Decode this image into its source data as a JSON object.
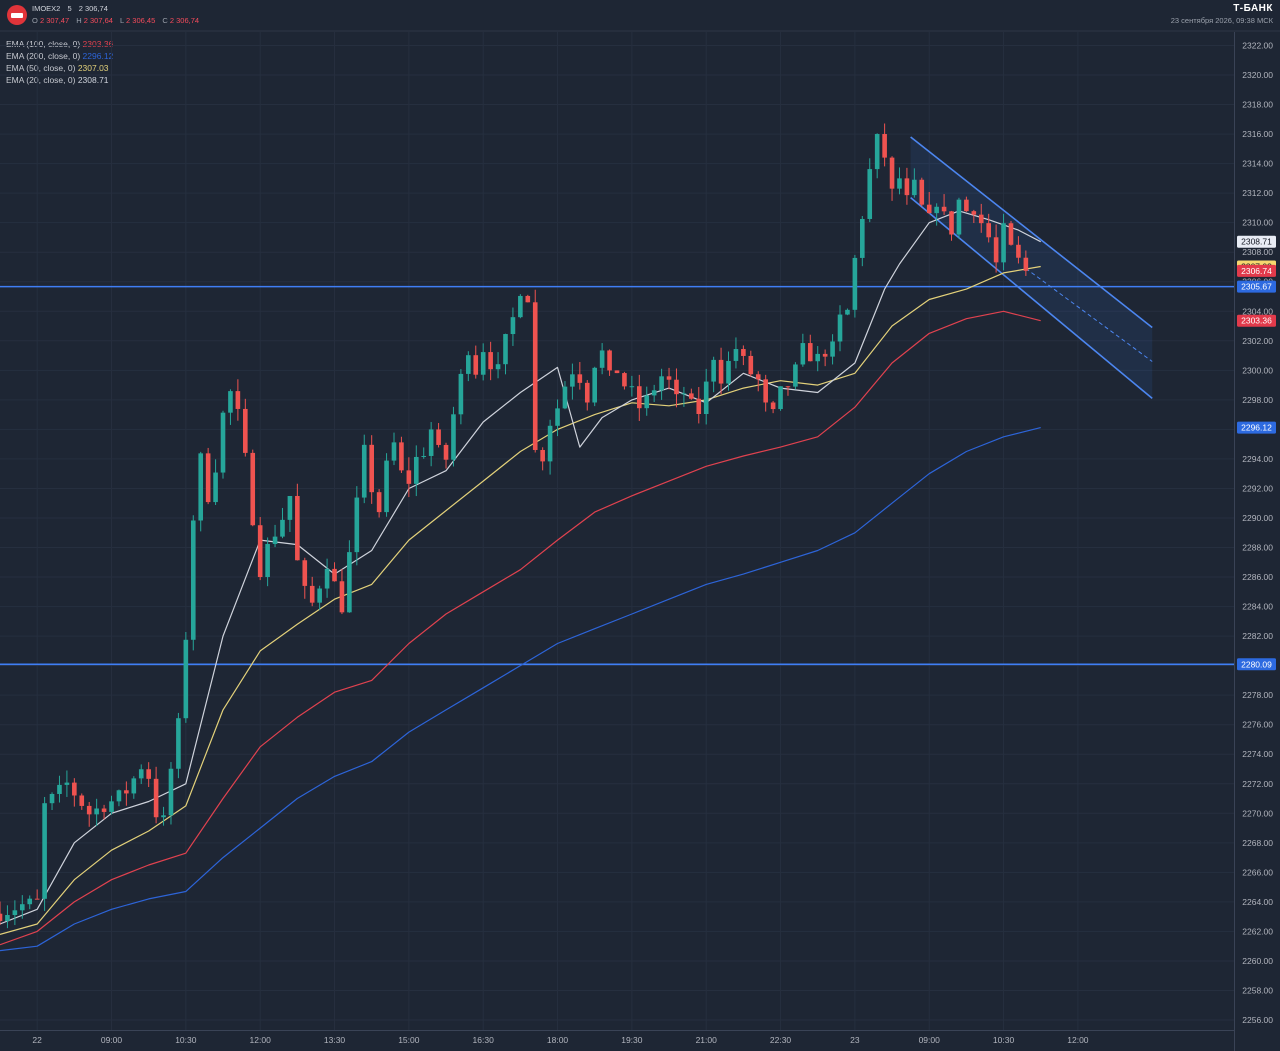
{
  "header": {
    "symbol": "IMOEX2",
    "timeframe": "5",
    "price": "2 306,74",
    "ohlc": [
      {
        "k": "O",
        "v": "2 307,47"
      },
      {
        "k": "H",
        "v": "2 307,64"
      },
      {
        "k": "L",
        "v": "2 306,45"
      },
      {
        "k": "C",
        "v": "2 306,74"
      }
    ],
    "brand": "Т-БАНК",
    "datetime": "23 сентября 2026, 09:38 МСК"
  },
  "chart_data": {
    "type": "candlestick",
    "y_ticks": [
      "2322.00",
      "2320.00",
      "2318.00",
      "2316.00",
      "2314.00",
      "2312.00",
      "2310.00",
      "2308.00",
      "2306.00",
      "2304.00",
      "2302.00",
      "2300.00",
      "2298.00",
      "2296.00",
      "2294.00",
      "2292.00",
      "2290.00",
      "2288.00",
      "2286.00",
      "2284.00",
      "2282.00",
      "2280.00",
      "2278.00",
      "2276.00",
      "2274.00",
      "2272.00",
      "2270.00",
      "2268.00",
      "2266.00",
      "2264.00",
      "2262.00",
      "2260.00",
      "2258.00",
      "2256.00"
    ],
    "ylim": [
      2255.5,
      2323.5
    ],
    "x_ticks": [
      "22",
      "09:00",
      "10:30",
      "12:00",
      "13:30",
      "15:00",
      "16:30",
      "18:00",
      "19:30",
      "21:00",
      "22:30",
      "23",
      "09:00",
      "10:30",
      "12:00"
    ],
    "x_tick_positions": [
      0,
      10,
      20,
      30,
      40,
      50,
      60,
      70,
      80,
      90,
      100,
      110,
      120,
      130,
      140
    ],
    "x_range": [
      -5,
      161
    ],
    "price_labels": [
      {
        "text": "2308.71",
        "value": 2308.71,
        "color": "#e8ecf5",
        "fg": "#131722"
      },
      {
        "text": "2307.03",
        "value": 2307.03,
        "color": "#f5d76e",
        "fg": "#131722"
      },
      {
        "text": "2306.74",
        "value": 2306.74,
        "color": "#e23a4b",
        "fg": "#ffffff"
      },
      {
        "text": "2305.67",
        "value": 2305.67,
        "color": "#2d6ae0",
        "fg": "#ffffff"
      },
      {
        "text": "2303.36",
        "value": 2303.36,
        "color": "#e23a4b",
        "fg": "#ffffff"
      },
      {
        "text": "2296.12",
        "value": 2296.12,
        "color": "#2d6ae0",
        "fg": "#ffffff"
      },
      {
        "text": "2280.09",
        "value": 2280.09,
        "color": "#2d6ae0",
        "fg": "#ffffff"
      }
    ],
    "horizontal_lines": [
      {
        "value": 2305.67,
        "color": "#3f7ef5"
      },
      {
        "value": 2280.09,
        "color": "#3f7ef5"
      }
    ],
    "channel": {
      "upper": [
        [
          117.5,
          2315.8
        ],
        [
          150,
          2302.9
        ]
      ],
      "lower": [
        [
          117.5,
          2311.7
        ],
        [
          150,
          2298.1
        ]
      ],
      "mid": [
        [
          133,
          2306.9
        ],
        [
          150,
          2300.6
        ]
      ]
    },
    "ema": [
      {
        "label": "EMA (100, close, 0)",
        "value": "2303.36",
        "color": "#e0424f",
        "points": [
          [
            -5,
            2261.1
          ],
          [
            0,
            2262.0
          ],
          [
            5,
            2264.0
          ],
          [
            10,
            2265.5
          ],
          [
            15,
            2266.5
          ],
          [
            20,
            2267.3
          ],
          [
            25,
            2271.0
          ],
          [
            30,
            2274.5
          ],
          [
            35,
            2276.5
          ],
          [
            40,
            2278.2
          ],
          [
            45,
            2279.0
          ],
          [
            50,
            2281.5
          ],
          [
            55,
            2283.5
          ],
          [
            60,
            2285.0
          ],
          [
            65,
            2286.5
          ],
          [
            70,
            2288.5
          ],
          [
            75,
            2290.4
          ],
          [
            80,
            2291.5
          ],
          [
            85,
            2292.5
          ],
          [
            90,
            2293.5
          ],
          [
            95,
            2294.2
          ],
          [
            100,
            2294.8
          ],
          [
            105,
            2295.5
          ],
          [
            110,
            2297.5
          ],
          [
            115,
            2300.5
          ],
          [
            120,
            2302.5
          ],
          [
            125,
            2303.5
          ],
          [
            130,
            2304.0
          ],
          [
            135,
            2303.36
          ]
        ]
      },
      {
        "label": "EMA (200, close, 0)",
        "value": "2296.12",
        "color": "#2d64d8",
        "points": [
          [
            -5,
            2260.7
          ],
          [
            0,
            2261.0
          ],
          [
            5,
            2262.5
          ],
          [
            10,
            2263.5
          ],
          [
            15,
            2264.2
          ],
          [
            20,
            2264.7
          ],
          [
            25,
            2267.0
          ],
          [
            30,
            2269.0
          ],
          [
            35,
            2271.0
          ],
          [
            40,
            2272.5
          ],
          [
            45,
            2273.5
          ],
          [
            50,
            2275.5
          ],
          [
            55,
            2277.0
          ],
          [
            60,
            2278.5
          ],
          [
            65,
            2280.0
          ],
          [
            70,
            2281.5
          ],
          [
            75,
            2282.5
          ],
          [
            80,
            2283.5
          ],
          [
            85,
            2284.5
          ],
          [
            90,
            2285.5
          ],
          [
            95,
            2286.2
          ],
          [
            100,
            2287.0
          ],
          [
            105,
            2287.8
          ],
          [
            110,
            2289.0
          ],
          [
            115,
            2291.0
          ],
          [
            120,
            2293.0
          ],
          [
            125,
            2294.5
          ],
          [
            130,
            2295.5
          ],
          [
            135,
            2296.12
          ]
        ]
      },
      {
        "label": "EMA (50, close, 0)",
        "value": "2307.03",
        "color": "#e3d17a",
        "points": [
          [
            -5,
            2261.8
          ],
          [
            0,
            2262.5
          ],
          [
            5,
            2265.5
          ],
          [
            10,
            2267.5
          ],
          [
            15,
            2268.8
          ],
          [
            20,
            2270.5
          ],
          [
            25,
            2277.0
          ],
          [
            30,
            2281.0
          ],
          [
            35,
            2282.8
          ],
          [
            40,
            2284.5
          ],
          [
            45,
            2285.5
          ],
          [
            50,
            2288.5
          ],
          [
            55,
            2290.5
          ],
          [
            60,
            2292.5
          ],
          [
            65,
            2294.5
          ],
          [
            70,
            2296.0
          ],
          [
            75,
            2297.0
          ],
          [
            80,
            2297.8
          ],
          [
            85,
            2297.6
          ],
          [
            90,
            2298.0
          ],
          [
            95,
            2298.8
          ],
          [
            100,
            2299.3
          ],
          [
            105,
            2299.0
          ],
          [
            110,
            2299.8
          ],
          [
            115,
            2303.0
          ],
          [
            120,
            2304.8
          ],
          [
            125,
            2305.5
          ],
          [
            130,
            2306.6
          ],
          [
            135,
            2307.03
          ]
        ]
      },
      {
        "label": "EMA (20, close, 0)",
        "value": "2308.71",
        "color": "#cfd3dc",
        "points": [
          [
            -5,
            2262.5
          ],
          [
            0,
            2263.5
          ],
          [
            5,
            2268.0
          ],
          [
            10,
            2270.0
          ],
          [
            15,
            2270.8
          ],
          [
            20,
            2272.0
          ],
          [
            25,
            2282.0
          ],
          [
            30,
            2288.5
          ],
          [
            35,
            2288.2
          ],
          [
            40,
            2286.2
          ],
          [
            45,
            2287.8
          ],
          [
            50,
            2292.0
          ],
          [
            55,
            2293.2
          ],
          [
            60,
            2296.5
          ],
          [
            65,
            2298.5
          ],
          [
            70,
            2300.2
          ],
          [
            73,
            2294.8
          ],
          [
            76,
            2296.8
          ],
          [
            80,
            2298.0
          ],
          [
            85,
            2298.8
          ],
          [
            90,
            2297.8
          ],
          [
            95,
            2299.8
          ],
          [
            100,
            2298.8
          ],
          [
            105,
            2298.5
          ],
          [
            110,
            2300.5
          ],
          [
            114,
            2305.5
          ],
          [
            116,
            2307.2
          ],
          [
            120,
            2310.0
          ],
          [
            124,
            2310.8
          ],
          [
            128,
            2310.2
          ],
          [
            132,
            2309.5
          ],
          [
            135,
            2308.71
          ]
        ]
      }
    ]
  }
}
